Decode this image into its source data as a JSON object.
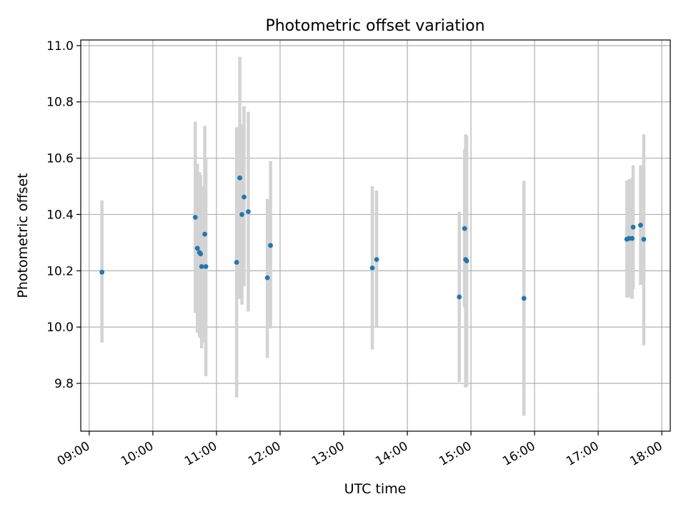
{
  "chart_data": {
    "type": "scatter",
    "title": "Photometric offset variation",
    "xlabel": "UTC time",
    "ylabel": "Photometric offset",
    "x_tick_labels": [
      "09:00",
      "10:00",
      "11:00",
      "12:00",
      "13:00",
      "14:00",
      "15:00",
      "16:00",
      "17:00",
      "18:00"
    ],
    "y_tick_labels": [
      "9.8",
      "10.0",
      "10.2",
      "10.4",
      "10.6",
      "10.8",
      "11.0"
    ],
    "xlim": [
      "08:52",
      "18:08"
    ],
    "ylim": [
      9.63,
      11.02
    ],
    "grid": true,
    "colors": {
      "points": "#1f77b4",
      "errorbars": "#d3d3d3",
      "grid": "#b0b0b0",
      "axes": "#000000"
    },
    "series": [
      {
        "points": [
          {
            "x": "09:12",
            "y": 10.195,
            "ymin": 9.945,
            "ymax": 10.45
          },
          {
            "x": "10:40",
            "y": 10.39,
            "ymin": 10.05,
            "ymax": 10.73
          },
          {
            "x": "10:42",
            "y": 10.28,
            "ymin": 9.98,
            "ymax": 10.58
          },
          {
            "x": "10:44",
            "y": 10.265,
            "ymin": 9.965,
            "ymax": 10.55
          },
          {
            "x": "10:45",
            "y": 10.26,
            "ymin": 9.96,
            "ymax": 10.54
          },
          {
            "x": "10:46",
            "y": 10.215,
            "ymin": 9.925,
            "ymax": 10.5
          },
          {
            "x": "10:49",
            "y": 10.33,
            "ymin": 9.945,
            "ymax": 10.715
          },
          {
            "x": "10:50",
            "y": 10.215,
            "ymin": 9.825,
            "ymax": 10.6
          },
          {
            "x": "11:19",
            "y": 10.23,
            "ymin": 9.75,
            "ymax": 10.71
          },
          {
            "x": "11:22",
            "y": 10.53,
            "ymin": 10.1,
            "ymax": 10.96
          },
          {
            "x": "11:24",
            "y": 10.4,
            "ymin": 10.08,
            "ymax": 10.72
          },
          {
            "x": "11:26",
            "y": 10.462,
            "ymin": 10.145,
            "ymax": 10.785
          },
          {
            "x": "11:30",
            "y": 10.41,
            "ymin": 10.055,
            "ymax": 10.765
          },
          {
            "x": "11:48",
            "y": 10.175,
            "ymin": 9.89,
            "ymax": 10.455
          },
          {
            "x": "11:51",
            "y": 10.29,
            "ymin": 9.995,
            "ymax": 10.59
          },
          {
            "x": "13:27",
            "y": 10.21,
            "ymin": 9.92,
            "ymax": 10.5
          },
          {
            "x": "13:31",
            "y": 10.24,
            "ymin": 10.0,
            "ymax": 10.485
          },
          {
            "x": "14:49",
            "y": 10.107,
            "ymin": 9.805,
            "ymax": 10.41
          },
          {
            "x": "14:54",
            "y": 10.35,
            "ymin": 10.07,
            "ymax": 10.63
          },
          {
            "x": "14:55",
            "y": 10.24,
            "ymin": 9.785,
            "ymax": 10.685
          },
          {
            "x": "14:56",
            "y": 10.235,
            "ymin": 9.79,
            "ymax": 10.68
          },
          {
            "x": "15:50",
            "y": 10.102,
            "ymin": 9.685,
            "ymax": 10.52
          },
          {
            "x": "17:27",
            "y": 10.312,
            "ymin": 10.105,
            "ymax": 10.52
          },
          {
            "x": "17:29",
            "y": 10.315,
            "ymin": 10.105,
            "ymax": 10.525
          },
          {
            "x": "17:32",
            "y": 10.315,
            "ymin": 10.1,
            "ymax": 10.53
          },
          {
            "x": "17:33",
            "y": 10.355,
            "ymin": 10.135,
            "ymax": 10.575
          },
          {
            "x": "17:40",
            "y": 10.362,
            "ymin": 10.15,
            "ymax": 10.575
          },
          {
            "x": "17:43",
            "y": 10.312,
            "ymin": 9.935,
            "ymax": 10.685
          }
        ]
      }
    ]
  }
}
